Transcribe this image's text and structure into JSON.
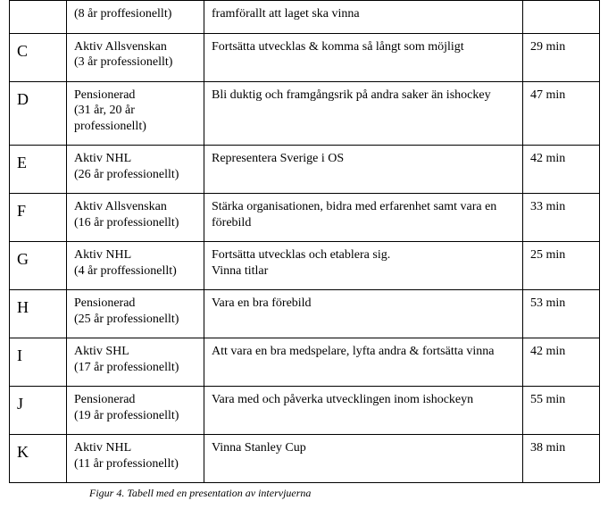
{
  "rows": [
    {
      "id": "",
      "status": "(8 år proffesionellt)",
      "goal": "framförallt att laget ska vinna",
      "time": ""
    },
    {
      "id": "C",
      "status": "Aktiv Allsvenskan\n(3 år professionellt)",
      "goal": "Fortsätta utvecklas & komma så långt som möjligt",
      "time": "29 min"
    },
    {
      "id": "D",
      "status": "Pensionerad\n(31 år, 20 år professionellt)",
      "goal": "Bli duktig och framgångsrik på andra saker än ishockey",
      "time": "47 min"
    },
    {
      "id": "E",
      "status": "Aktiv NHL\n(26 år professionellt)",
      "goal": "Representera Sverige i OS",
      "time": "42 min"
    },
    {
      "id": "F",
      "status": "Aktiv Allsvenskan\n(16 år professionellt)",
      "goal": "Stärka organisationen, bidra med erfarenhet samt vara en förebild",
      "time": "33 min"
    },
    {
      "id": "G",
      "status": "Aktiv NHL\n(4 år proffessionellt)",
      "goal": "Fortsätta utvecklas och etablera sig.\nVinna titlar",
      "time": "25 min"
    },
    {
      "id": "H",
      "status": "Pensionerad\n(25 år professionellt)",
      "goal": "Vara en bra förebild",
      "time": "53 min"
    },
    {
      "id": "I",
      "status": "Aktiv SHL\n(17 år professionellt)",
      "goal": "Att vara en bra medspelare, lyfta andra & fortsätta vinna",
      "time": "42 min"
    },
    {
      "id": "J",
      "status": "Pensionerad\n(19 år professionellt)",
      "goal": "Vara med och påverka utvecklingen inom ishockeyn",
      "time": "55 min"
    },
    {
      "id": "K",
      "status": "Aktiv NHL\n(11 år professionellt)",
      "goal": "Vinna Stanley Cup",
      "time": "38 min"
    }
  ],
  "caption": "Figur 4. Tabell med en presentation av intervjuerna"
}
